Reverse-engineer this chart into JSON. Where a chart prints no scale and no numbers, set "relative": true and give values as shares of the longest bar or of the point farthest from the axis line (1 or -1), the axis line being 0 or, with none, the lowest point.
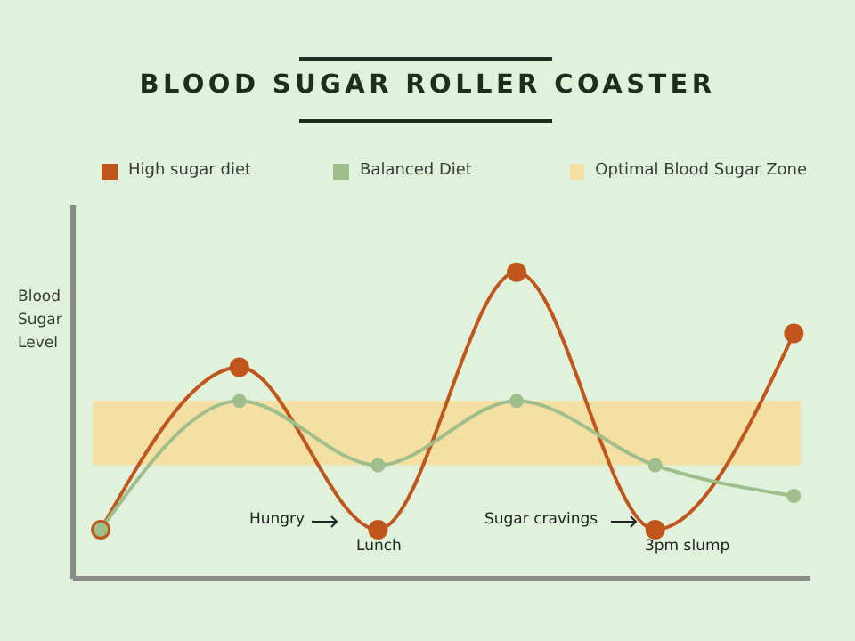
{
  "chart_data": {
    "type": "line",
    "title": "BLOOD SUGAR ROLLER COASTER",
    "ylabel": "Blood Sugar Level",
    "relative": true,
    "categories": [
      null,
      null,
      null,
      null,
      null,
      null
    ],
    "series": [
      {
        "name": "High sugar diet",
        "color": "#c0561c",
        "values": [
          0.16,
          0.69,
          0.16,
          1,
          0.16,
          0.8
        ]
      },
      {
        "name": "Balanced Diet",
        "color": "#9ebf8c",
        "values": [
          0.16,
          0.58,
          0.37,
          0.58,
          0.37,
          0.27
        ]
      }
    ],
    "bands": [
      {
        "axis": "y",
        "from": 0.37,
        "to": 0.58,
        "label": "Optimal Blood Sugar Zone",
        "color": "#f3e0a2"
      }
    ],
    "annotations": [
      "Hungry",
      "Lunch",
      "Sugar cravings",
      "3pm slump"
    ],
    "legend": "top",
    "marker": "circle"
  }
}
